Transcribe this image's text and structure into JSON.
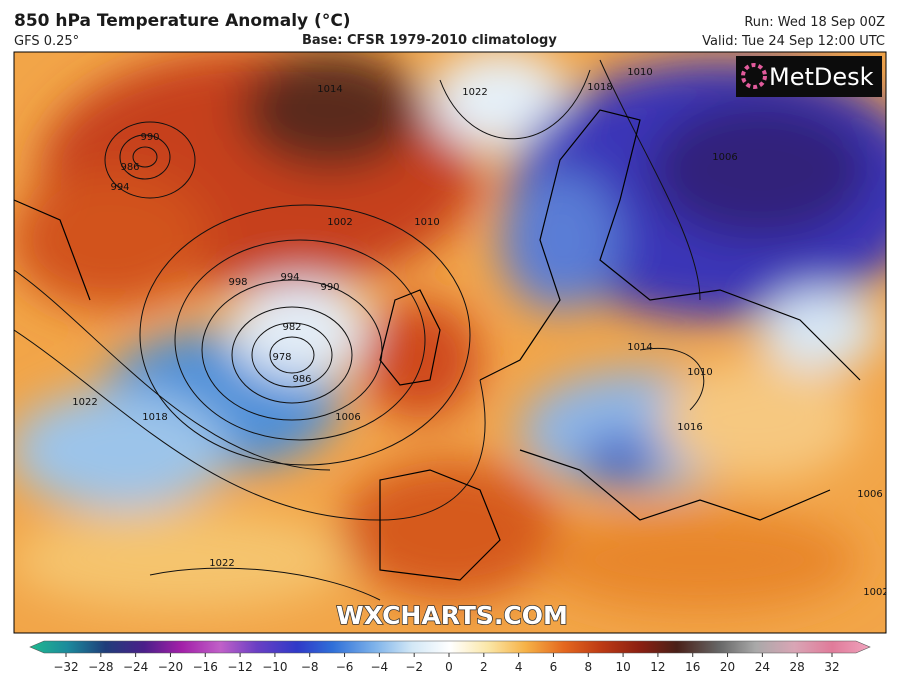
{
  "header": {
    "title": "850 hPa Temperature Anomaly (°C)",
    "model": "GFS 0.25°",
    "base": "Base: CFSR 1979-2010 climatology",
    "run": "Run: Wed 18 Sep 00Z",
    "valid": "Tue 24 Sep 12:00 UTC",
    "valid_label": "Valid:"
  },
  "map": {
    "logo": "MetDesk",
    "watermark": "WXCHARTS.COM",
    "contour_labels": [
      "990",
      "986",
      "994",
      "998",
      "1002",
      "1010",
      "1022",
      "994",
      "990",
      "982",
      "978",
      "986",
      "1006",
      "1018",
      "1022",
      "1022",
      "1010",
      "1014",
      "1018",
      "1006",
      "1014",
      "1010",
      "1016",
      "1006",
      "1002"
    ]
  },
  "colorbar": {
    "ticks": [
      "−32",
      "−28",
      "−24",
      "−20",
      "−16",
      "−12",
      "−10",
      "−8",
      "−6",
      "−4",
      "−2",
      "0",
      "2",
      "4",
      "6",
      "8",
      "10",
      "12",
      "16",
      "20",
      "24",
      "28",
      "32"
    ]
  }
}
